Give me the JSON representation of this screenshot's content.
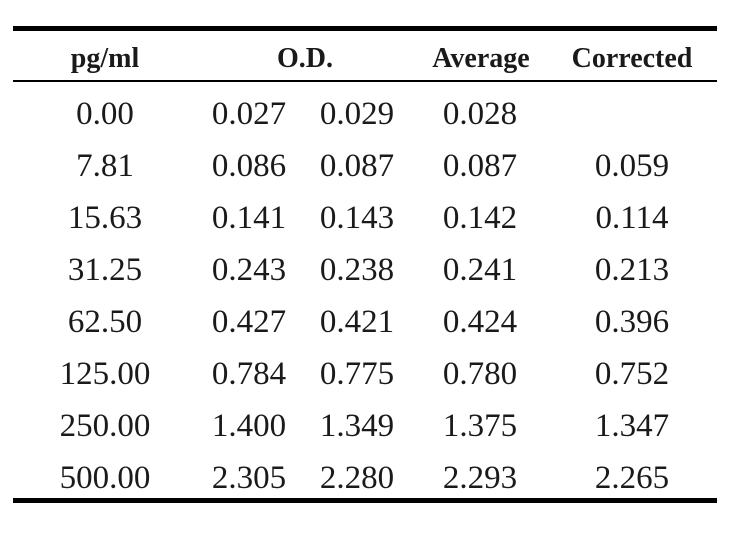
{
  "table": {
    "headers": {
      "concentration": "pg/ml",
      "od": "O.D.",
      "average": "Average",
      "corrected": "Corrected"
    },
    "rows": [
      {
        "concentration": "0.00",
        "od1": "0.027",
        "od2": "0.029",
        "average": "0.028",
        "corrected": ""
      },
      {
        "concentration": "7.81",
        "od1": "0.086",
        "od2": "0.087",
        "average": "0.087",
        "corrected": "0.059"
      },
      {
        "concentration": "15.63",
        "od1": "0.141",
        "od2": "0.143",
        "average": "0.142",
        "corrected": "0.114"
      },
      {
        "concentration": "31.25",
        "od1": "0.243",
        "od2": "0.238",
        "average": "0.241",
        "corrected": "0.213"
      },
      {
        "concentration": "62.50",
        "od1": "0.427",
        "od2": "0.421",
        "average": "0.424",
        "corrected": "0.396"
      },
      {
        "concentration": "125.00",
        "od1": "0.784",
        "od2": "0.775",
        "average": "0.780",
        "corrected": "0.752"
      },
      {
        "concentration": "250.00",
        "od1": "1.400",
        "od2": "1.349",
        "average": "1.375",
        "corrected": "1.347"
      },
      {
        "concentration": "500.00",
        "od1": "2.305",
        "od2": "2.280",
        "average": "2.293",
        "corrected": "2.265"
      }
    ]
  }
}
